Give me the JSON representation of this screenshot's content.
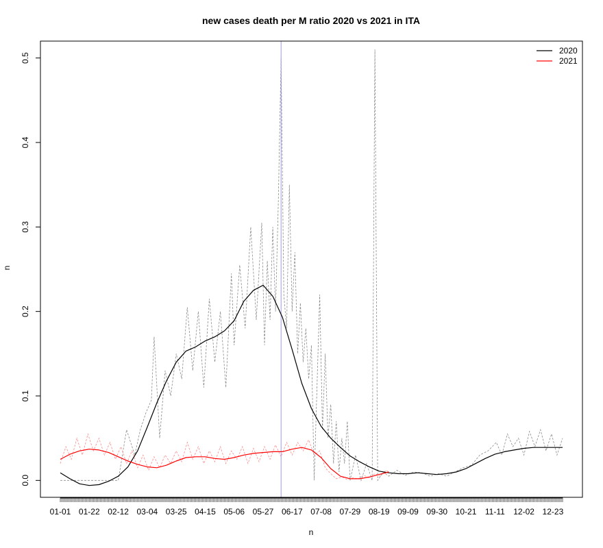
{
  "chart_data": {
    "type": "line",
    "title": "new cases death per M ratio 2020 vs 2021 in ITA",
    "xlabel": "n",
    "ylabel": "n",
    "ylim": [
      -0.02,
      0.52
    ],
    "y_ticks": [
      "0.0",
      "0.1",
      "0.2",
      "0.3",
      "0.4",
      "0.5"
    ],
    "x_ticks": [
      "01-01",
      "01-22",
      "02-12",
      "03-04",
      "03-25",
      "04-15",
      "05-06",
      "05-27",
      "06-17",
      "07-08",
      "07-29",
      "08-19",
      "09-09",
      "09-30",
      "10-21",
      "11-11",
      "12-02",
      "12-23"
    ],
    "day_range": [
      0,
      364
    ],
    "today_marker_day": 160,
    "legend_position": "top-right",
    "series": [
      {
        "name": "2020",
        "color": "#000000",
        "smooth": [
          [
            0,
            0.009
          ],
          [
            7,
            0.002
          ],
          [
            14,
            -0.004
          ],
          [
            21,
            -0.006
          ],
          [
            28,
            -0.005
          ],
          [
            35,
            -0.001
          ],
          [
            42,
            0.005
          ],
          [
            49,
            0.016
          ],
          [
            56,
            0.035
          ],
          [
            63,
            0.063
          ],
          [
            70,
            0.092
          ],
          [
            77,
            0.118
          ],
          [
            84,
            0.14
          ],
          [
            91,
            0.153
          ],
          [
            98,
            0.158
          ],
          [
            105,
            0.165
          ],
          [
            112,
            0.17
          ],
          [
            119,
            0.177
          ],
          [
            126,
            0.189
          ],
          [
            133,
            0.212
          ],
          [
            140,
            0.225
          ],
          [
            147,
            0.231
          ],
          [
            154,
            0.218
          ],
          [
            161,
            0.193
          ],
          [
            168,
            0.155
          ],
          [
            175,
            0.115
          ],
          [
            182,
            0.085
          ],
          [
            189,
            0.064
          ],
          [
            196,
            0.05
          ],
          [
            203,
            0.039
          ],
          [
            210,
            0.029
          ],
          [
            217,
            0.022
          ],
          [
            224,
            0.016
          ],
          [
            231,
            0.011
          ],
          [
            238,
            0.009
          ],
          [
            245,
            0.008
          ],
          [
            252,
            0.008
          ],
          [
            259,
            0.009
          ],
          [
            266,
            0.008
          ],
          [
            273,
            0.007
          ],
          [
            280,
            0.008
          ],
          [
            287,
            0.01
          ],
          [
            294,
            0.014
          ],
          [
            301,
            0.02
          ],
          [
            308,
            0.026
          ],
          [
            315,
            0.031
          ],
          [
            322,
            0.034
          ],
          [
            329,
            0.036
          ],
          [
            336,
            0.038
          ],
          [
            343,
            0.039
          ],
          [
            350,
            0.039
          ],
          [
            364,
            0.039
          ]
        ],
        "raw": [
          [
            0,
            0.0
          ],
          [
            6,
            0.0
          ],
          [
            12,
            0.0
          ],
          [
            18,
            0.0
          ],
          [
            24,
            0.0
          ],
          [
            30,
            0.0
          ],
          [
            36,
            0.0
          ],
          [
            42,
            0.0
          ],
          [
            48,
            0.06
          ],
          [
            54,
            0.03
          ],
          [
            58,
            0.06
          ],
          [
            62,
            0.08
          ],
          [
            66,
            0.095
          ],
          [
            68,
            0.17
          ],
          [
            72,
            0.05
          ],
          [
            76,
            0.13
          ],
          [
            80,
            0.1
          ],
          [
            84,
            0.15
          ],
          [
            88,
            0.12
          ],
          [
            92,
            0.205
          ],
          [
            96,
            0.13
          ],
          [
            100,
            0.2
          ],
          [
            104,
            0.11
          ],
          [
            108,
            0.215
          ],
          [
            112,
            0.14
          ],
          [
            116,
            0.2
          ],
          [
            120,
            0.11
          ],
          [
            124,
            0.245
          ],
          [
            126,
            0.16
          ],
          [
            130,
            0.255
          ],
          [
            134,
            0.18
          ],
          [
            138,
            0.3
          ],
          [
            142,
            0.19
          ],
          [
            146,
            0.305
          ],
          [
            148,
            0.16
          ],
          [
            150,
            0.26
          ],
          [
            152,
            0.19
          ],
          [
            154,
            0.3
          ],
          [
            156,
            0.2
          ],
          [
            158,
            0.33
          ],
          [
            160,
            0.5
          ],
          [
            162,
            0.22
          ],
          [
            164,
            0.18
          ],
          [
            166,
            0.35
          ],
          [
            168,
            0.2
          ],
          [
            170,
            0.27
          ],
          [
            172,
            0.15
          ],
          [
            174,
            0.21
          ],
          [
            176,
            0.14
          ],
          [
            178,
            0.18
          ],
          [
            180,
            0.12
          ],
          [
            182,
            0.16
          ],
          [
            184,
            0.0
          ],
          [
            186,
            0.11
          ],
          [
            188,
            0.22
          ],
          [
            190,
            0.06
          ],
          [
            192,
            0.15
          ],
          [
            194,
            0.05
          ],
          [
            196,
            0.09
          ],
          [
            198,
            0.02
          ],
          [
            200,
            0.07
          ],
          [
            202,
            0.01
          ],
          [
            204,
            0.05
          ],
          [
            206,
            0.02
          ],
          [
            208,
            0.07
          ],
          [
            210,
            0.0
          ],
          [
            214,
            0.03
          ],
          [
            218,
            0.0
          ],
          [
            222,
            0.02
          ],
          [
            226,
            0.0
          ],
          [
            228,
            0.51
          ],
          [
            230,
            0.0
          ],
          [
            234,
            0.01
          ],
          [
            238,
            0.005
          ],
          [
            244,
            0.012
          ],
          [
            250,
            0.006
          ],
          [
            256,
            0.01
          ],
          [
            262,
            0.009
          ],
          [
            268,
            0.005
          ],
          [
            274,
            0.008
          ],
          [
            280,
            0.005
          ],
          [
            286,
            0.01
          ],
          [
            292,
            0.015
          ],
          [
            298,
            0.018
          ],
          [
            304,
            0.03
          ],
          [
            310,
            0.035
          ],
          [
            316,
            0.045
          ],
          [
            320,
            0.03
          ],
          [
            324,
            0.055
          ],
          [
            328,
            0.04
          ],
          [
            332,
            0.05
          ],
          [
            336,
            0.03
          ],
          [
            340,
            0.058
          ],
          [
            344,
            0.04
          ],
          [
            348,
            0.06
          ],
          [
            352,
            0.035
          ],
          [
            356,
            0.055
          ],
          [
            360,
            0.03
          ],
          [
            364,
            0.05
          ]
        ]
      },
      {
        "name": "2021",
        "color": "#ff0000",
        "smooth": [
          [
            0,
            0.025
          ],
          [
            7,
            0.031
          ],
          [
            14,
            0.035
          ],
          [
            21,
            0.037
          ],
          [
            28,
            0.036
          ],
          [
            35,
            0.033
          ],
          [
            42,
            0.028
          ],
          [
            49,
            0.023
          ],
          [
            56,
            0.019
          ],
          [
            63,
            0.016
          ],
          [
            70,
            0.015
          ],
          [
            77,
            0.018
          ],
          [
            84,
            0.023
          ],
          [
            91,
            0.027
          ],
          [
            98,
            0.028
          ],
          [
            105,
            0.028
          ],
          [
            112,
            0.026
          ],
          [
            119,
            0.025
          ],
          [
            126,
            0.027
          ],
          [
            133,
            0.03
          ],
          [
            140,
            0.032
          ],
          [
            147,
            0.033
          ],
          [
            154,
            0.034
          ],
          [
            161,
            0.034
          ],
          [
            168,
            0.037
          ],
          [
            175,
            0.039
          ],
          [
            182,
            0.036
          ],
          [
            189,
            0.027
          ],
          [
            196,
            0.014
          ],
          [
            203,
            0.005
          ],
          [
            210,
            0.002
          ],
          [
            217,
            0.002
          ],
          [
            224,
            0.004
          ],
          [
            231,
            0.007
          ],
          [
            238,
            0.01
          ]
        ],
        "raw": [
          [
            0,
            0.02
          ],
          [
            4,
            0.04
          ],
          [
            8,
            0.025
          ],
          [
            12,
            0.05
          ],
          [
            16,
            0.03
          ],
          [
            20,
            0.055
          ],
          [
            24,
            0.035
          ],
          [
            28,
            0.05
          ],
          [
            32,
            0.03
          ],
          [
            36,
            0.045
          ],
          [
            40,
            0.025
          ],
          [
            44,
            0.04
          ],
          [
            48,
            0.02
          ],
          [
            52,
            0.035
          ],
          [
            56,
            0.015
          ],
          [
            60,
            0.03
          ],
          [
            64,
            0.012
          ],
          [
            68,
            0.028
          ],
          [
            72,
            0.015
          ],
          [
            76,
            0.03
          ],
          [
            80,
            0.02
          ],
          [
            84,
            0.035
          ],
          [
            88,
            0.022
          ],
          [
            92,
            0.045
          ],
          [
            96,
            0.025
          ],
          [
            100,
            0.04
          ],
          [
            104,
            0.02
          ],
          [
            108,
            0.035
          ],
          [
            112,
            0.022
          ],
          [
            116,
            0.04
          ],
          [
            120,
            0.02
          ],
          [
            124,
            0.035
          ],
          [
            128,
            0.025
          ],
          [
            132,
            0.04
          ],
          [
            136,
            0.02
          ],
          [
            140,
            0.038
          ],
          [
            144,
            0.022
          ],
          [
            148,
            0.04
          ],
          [
            152,
            0.025
          ],
          [
            156,
            0.042
          ],
          [
            160,
            0.028
          ],
          [
            164,
            0.045
          ],
          [
            168,
            0.03
          ],
          [
            172,
            0.045
          ],
          [
            176,
            0.035
          ],
          [
            180,
            0.048
          ],
          [
            184,
            0.03
          ],
          [
            188,
            0.035
          ],
          [
            192,
            0.015
          ],
          [
            196,
            0.008
          ],
          [
            200,
            0.002
          ],
          [
            204,
            0.004
          ],
          [
            208,
            0.001
          ],
          [
            212,
            0.003
          ],
          [
            216,
            0.002
          ],
          [
            220,
            0.006
          ],
          [
            224,
            0.003
          ],
          [
            228,
            0.008
          ],
          [
            232,
            0.005
          ],
          [
            236,
            0.012
          ],
          [
            238,
            0.01
          ]
        ]
      }
    ]
  }
}
